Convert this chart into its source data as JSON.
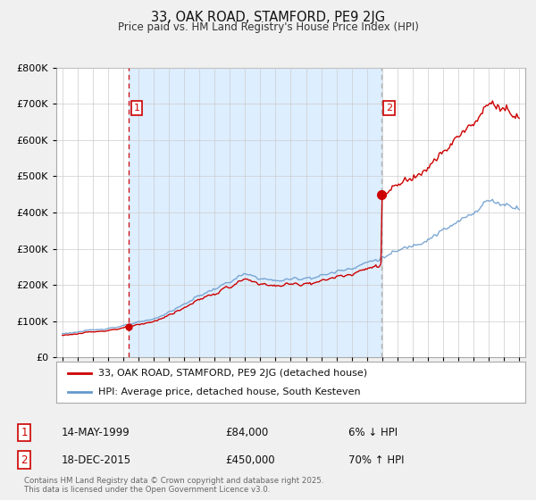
{
  "title": "33, OAK ROAD, STAMFORD, PE9 2JG",
  "subtitle": "Price paid vs. HM Land Registry's House Price Index (HPI)",
  "legend_line1": "33, OAK ROAD, STAMFORD, PE9 2JG (detached house)",
  "legend_line2": "HPI: Average price, detached house, South Kesteven",
  "footer": "Contains HM Land Registry data © Crown copyright and database right 2025.\nThis data is licensed under the Open Government Licence v3.0.",
  "transaction1_label": "14-MAY-1999",
  "transaction1_price": 84000,
  "transaction1_pct": "6% ↓ HPI",
  "transaction2_label": "18-DEC-2015",
  "transaction2_price": 450000,
  "transaction2_pct": "70% ↑ HPI",
  "transaction1_year": 1999.37,
  "transaction2_year": 2015.96,
  "property_color": "#cc0000",
  "hpi_color": "#6699cc",
  "vline1_color": "#cc0000",
  "vline2_color": "#aaaaaa",
  "shade_color": "#ddeeff",
  "background_color": "#f0f0f0",
  "plot_bg_color": "#ffffff",
  "ylim_max": 800000,
  "xlim_start": 1994.6,
  "xlim_end": 2025.4
}
